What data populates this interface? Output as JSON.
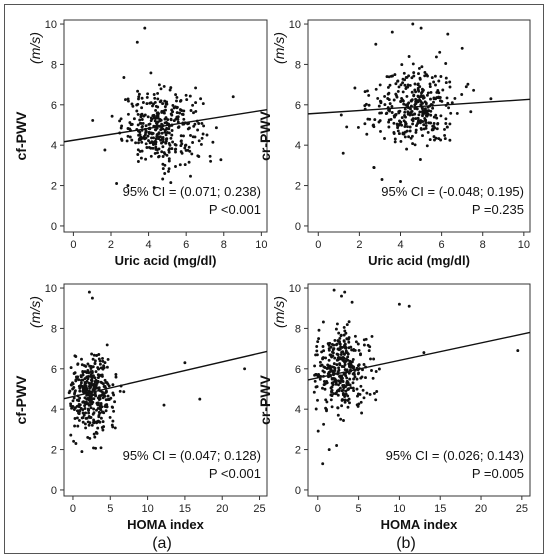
{
  "panel_labels": [
    "(a)",
    "(b)"
  ],
  "chart_data": [
    {
      "type": "scatter",
      "id": "tl",
      "ylabel": "cf-PWV",
      "unit": "(m/s)",
      "xlabel": "Uric acid (mg/dl)",
      "xticks": [
        0,
        2,
        4,
        6,
        8,
        10
      ],
      "yticks": [
        0,
        2,
        4,
        6,
        8,
        10
      ],
      "xlim": [
        -0.5,
        10.3
      ],
      "ylim": [
        -0.3,
        10.2
      ],
      "ci_text": "95% CI = (0.071; 0.238)",
      "p_text": "P <0.001",
      "trendline": {
        "x": [
          -0.5,
          10.3
        ],
        "y": [
          4.17,
          5.76
        ]
      },
      "cluster": {
        "cx": 4.7,
        "sx": 1.05,
        "cy": 4.9,
        "sy": 0.9,
        "n": 360
      },
      "outliers": [
        [
          3.8,
          9.8
        ],
        [
          3.4,
          9.1
        ],
        [
          2.3,
          2.1
        ],
        [
          2.9,
          2.0
        ],
        [
          8.5,
          6.4
        ],
        [
          7.3,
          3.2
        ],
        [
          4.3,
          1.9
        ]
      ]
    },
    {
      "type": "scatter",
      "id": "tr",
      "ylabel": "cr-PWV",
      "unit": "(m/s)",
      "xlabel": "Uric acid (mg/dl)",
      "xticks": [
        0,
        2,
        4,
        6,
        8,
        10
      ],
      "yticks": [
        0,
        2,
        4,
        6,
        8,
        10
      ],
      "xlim": [
        -0.5,
        10.3
      ],
      "ylim": [
        -0.3,
        10.2
      ],
      "ci_text": "95% CI = (-0.048; 0.195)",
      "p_text": "P =0.235",
      "trendline": {
        "x": [
          -0.5,
          10.3
        ],
        "y": [
          5.55,
          6.27
        ]
      },
      "cluster": {
        "cx": 4.6,
        "sx": 1.05,
        "cy": 5.9,
        "sy": 1.0,
        "n": 360
      },
      "outliers": [
        [
          4.6,
          10.0
        ],
        [
          5.0,
          9.8
        ],
        [
          3.6,
          9.6
        ],
        [
          6.3,
          9.5
        ],
        [
          2.8,
          9.0
        ],
        [
          7.0,
          8.8
        ],
        [
          3.1,
          2.3
        ],
        [
          4.0,
          2.2
        ],
        [
          2.7,
          2.9
        ],
        [
          8.4,
          6.3
        ]
      ]
    },
    {
      "type": "scatter",
      "id": "bl",
      "ylabel": "cf-PWV",
      "unit": "(m/s)",
      "xlabel": "HOMA index",
      "xticks": [
        0,
        5,
        10,
        15,
        20,
        25
      ],
      "yticks": [
        0,
        2,
        4,
        6,
        8,
        10
      ],
      "xlim": [
        -1.2,
        26.0
      ],
      "ylim": [
        -0.3,
        10.2
      ],
      "ci_text": "95% CI = (0.047; 0.128)",
      "p_text": "P <0.001",
      "trendline": {
        "x": [
          -1.2,
          26.0
        ],
        "y": [
          4.52,
          6.86
        ]
      },
      "cluster": {
        "cx": 2.6,
        "sx": 1.6,
        "cy": 4.8,
        "sy": 0.95,
        "n": 360
      },
      "outliers": [
        [
          2.2,
          9.8
        ],
        [
          2.6,
          9.5
        ],
        [
          0.4,
          2.3
        ],
        [
          1.2,
          1.9
        ],
        [
          15.0,
          6.3
        ],
        [
          23.0,
          6.0
        ],
        [
          17.0,
          4.5
        ],
        [
          12.2,
          4.2
        ]
      ]
    },
    {
      "type": "scatter",
      "id": "br",
      "ylabel": "cr-PWV",
      "unit": "(m/s)",
      "xlabel": "HOMA index",
      "xticks": [
        0,
        5,
        10,
        15,
        20,
        25
      ],
      "yticks": [
        0,
        2,
        4,
        6,
        8,
        10
      ],
      "xlim": [
        -1.2,
        26.0
      ],
      "ylim": [
        -0.3,
        10.2
      ],
      "ci_text": "95% CI = (0.026; 0.143)",
      "p_text": "P =0.005",
      "trendline": {
        "x": [
          -1.2,
          26.0
        ],
        "y": [
          5.45,
          7.8
        ]
      },
      "cluster": {
        "cx": 2.8,
        "sx": 1.7,
        "cy": 5.9,
        "sy": 1.0,
        "n": 360
      },
      "outliers": [
        [
          2.0,
          9.9
        ],
        [
          3.3,
          9.8
        ],
        [
          2.9,
          9.6
        ],
        [
          4.2,
          9.3
        ],
        [
          10.0,
          9.2
        ],
        [
          11.2,
          9.1
        ],
        [
          0.6,
          1.3
        ],
        [
          1.4,
          2.0
        ],
        [
          2.3,
          2.2
        ],
        [
          13.0,
          6.8
        ],
        [
          24.5,
          6.9
        ]
      ]
    }
  ]
}
